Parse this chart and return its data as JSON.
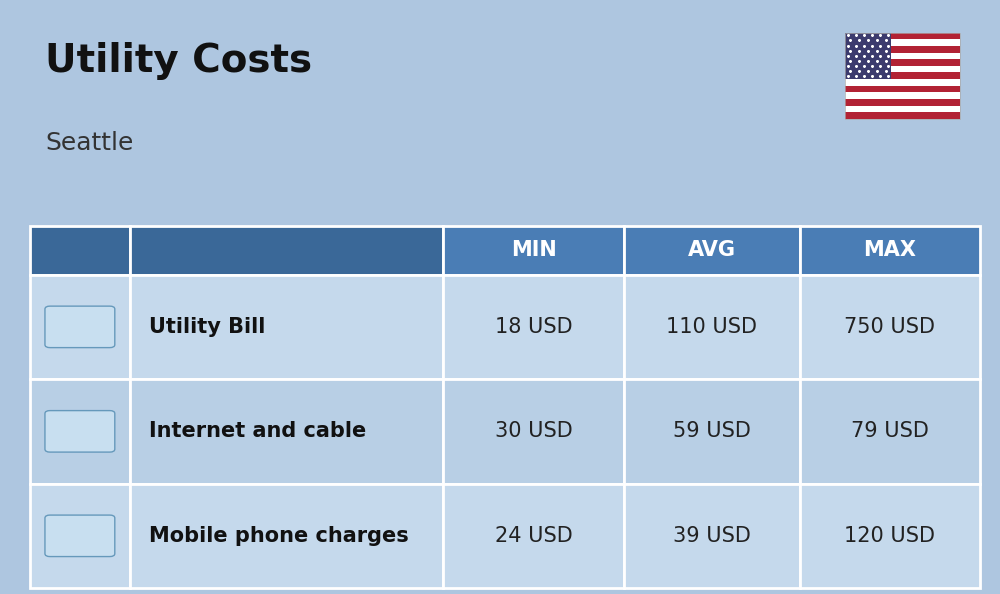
{
  "title": "Utility Costs",
  "subtitle": "Seattle",
  "background_color": "#aec6e0",
  "header_bg_color": "#4a7db5",
  "header_text_color": "#ffffff",
  "row_bg_color_1": "#c5d9ec",
  "row_bg_color_2": "#b8cfe5",
  "cell_text_color": "#222222",
  "label_text_color": "#111111",
  "title_fontsize": 28,
  "subtitle_fontsize": 18,
  "header_fontsize": 15,
  "cell_fontsize": 15,
  "label_fontsize": 15,
  "col_headers": [
    "",
    "",
    "MIN",
    "AVG",
    "MAX"
  ],
  "rows": [
    {
      "label": "Utility Bill",
      "min": "18 USD",
      "avg": "110 USD",
      "max": "750 USD"
    },
    {
      "label": "Internet and cable",
      "min": "30 USD",
      "avg": "59 USD",
      "max": "79 USD"
    },
    {
      "label": "Mobile phone charges",
      "min": "24 USD",
      "avg": "39 USD",
      "max": "120 USD"
    }
  ]
}
